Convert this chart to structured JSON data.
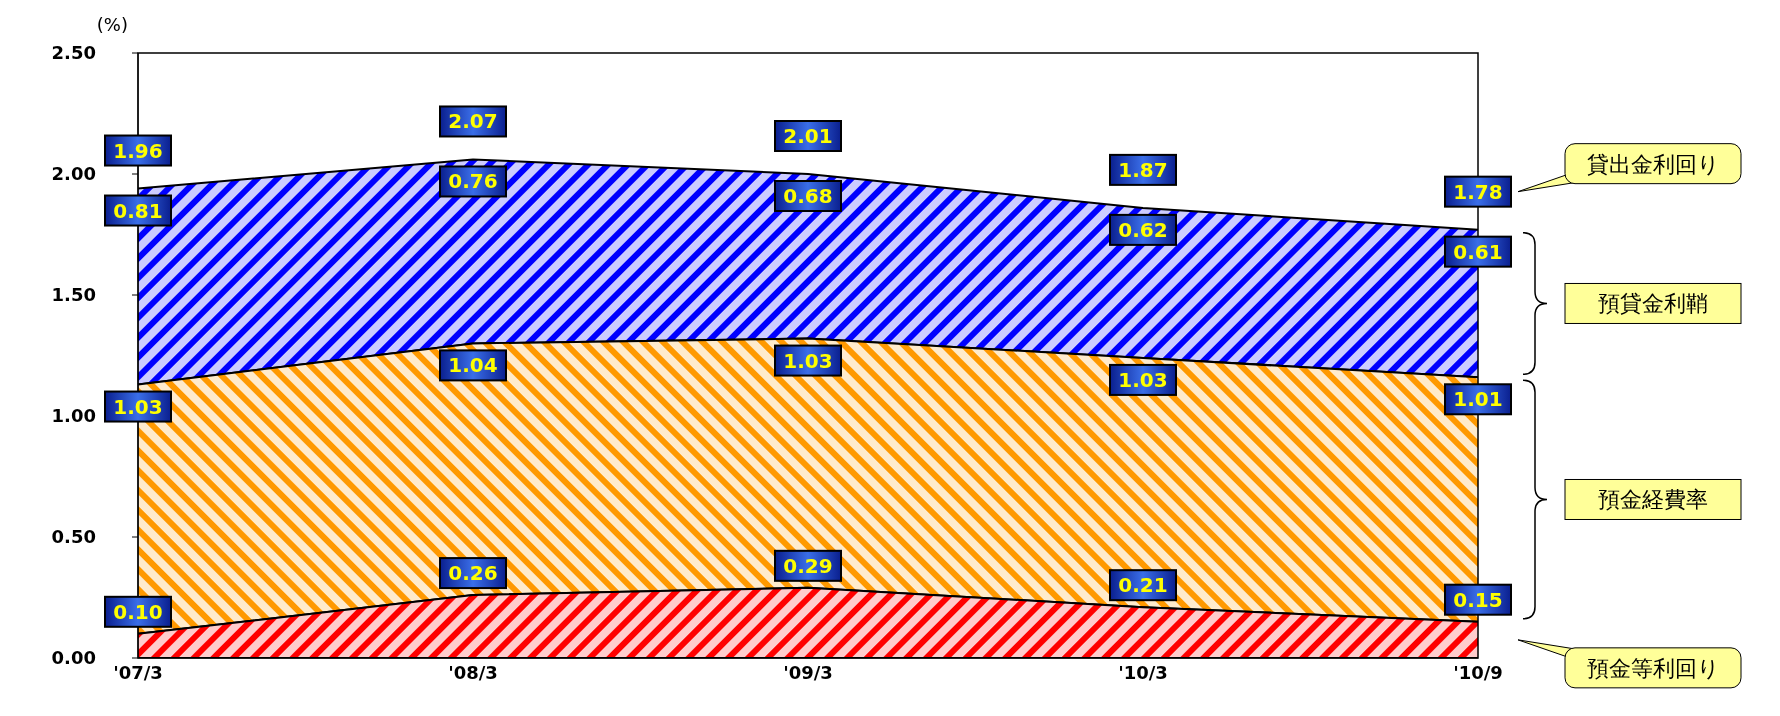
{
  "chart_data": {
    "type": "area",
    "stacked": true,
    "ylabel": "(%)",
    "categories": [
      "'07/3",
      "'08/3",
      "'09/3",
      "'10/3",
      "'10/9"
    ],
    "series": [
      {
        "name": "預金等利回り",
        "color": "#ff0000",
        "values": [
          0.1,
          0.26,
          0.29,
          0.21,
          0.15
        ],
        "value_labels": [
          "0.10",
          "0.26",
          "0.29",
          "0.21",
          "0.15"
        ]
      },
      {
        "name": "預金経費率",
        "color": "#ff9900",
        "values": [
          1.03,
          1.04,
          1.03,
          1.03,
          1.01
        ],
        "value_labels": [
          "1.03",
          "1.04",
          "1.03",
          "1.03",
          "1.01"
        ]
      },
      {
        "name": "預貸金利鞘",
        "color": "#0000ff",
        "values": [
          0.81,
          0.76,
          0.68,
          0.62,
          0.61
        ],
        "value_labels": [
          "0.81",
          "0.76",
          "0.68",
          "0.62",
          "0.61"
        ]
      }
    ],
    "totals": [
      "1.96",
      "2.07",
      "2.01",
      "1.87",
      "1.78"
    ],
    "annotations": [
      "貸出金利回り"
    ],
    "legend": "right",
    "grid": false,
    "ylim": [
      0,
      2.5
    ],
    "yticks": [
      {
        "value": 0,
        "label": "0.00"
      },
      {
        "value": 0.5,
        "label": "0.50"
      },
      {
        "value": 1,
        "label": "1.00"
      },
      {
        "value": 1.5,
        "label": "1.50"
      },
      {
        "value": 2,
        "label": "2.00"
      },
      {
        "value": 2.5,
        "label": "2.50"
      }
    ]
  }
}
